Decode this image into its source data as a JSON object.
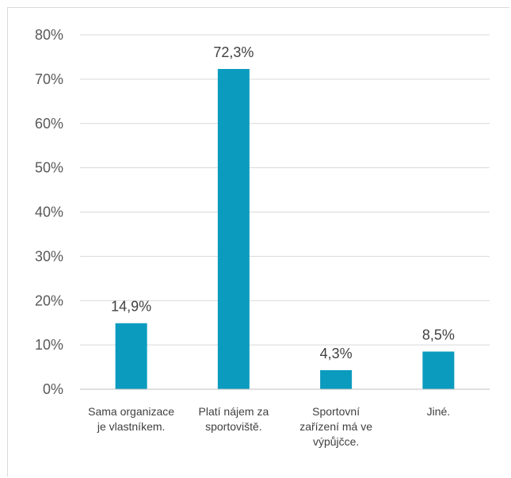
{
  "chart_data": {
    "type": "bar",
    "categories": [
      [
        "Sama organizace",
        "je vlastníkem."
      ],
      [
        "Platí nájem za",
        "sportoviště."
      ],
      [
        "Sportovní",
        "zařízení má ve",
        "výpůjčce."
      ],
      [
        "Jiné."
      ]
    ],
    "values": [
      14.9,
      72.3,
      4.3,
      8.5
    ],
    "data_labels": [
      "14,9%",
      "72,3%",
      "4,3%",
      "8,5%"
    ],
    "y_ticks": [
      "0%",
      "10%",
      "20%",
      "30%",
      "40%",
      "50%",
      "60%",
      "70%",
      "80%"
    ],
    "ylim": [
      0,
      80
    ],
    "grid": true,
    "legend": "none",
    "bar_color": "#0a9bbf",
    "grid_color": "#d9d9d9"
  }
}
